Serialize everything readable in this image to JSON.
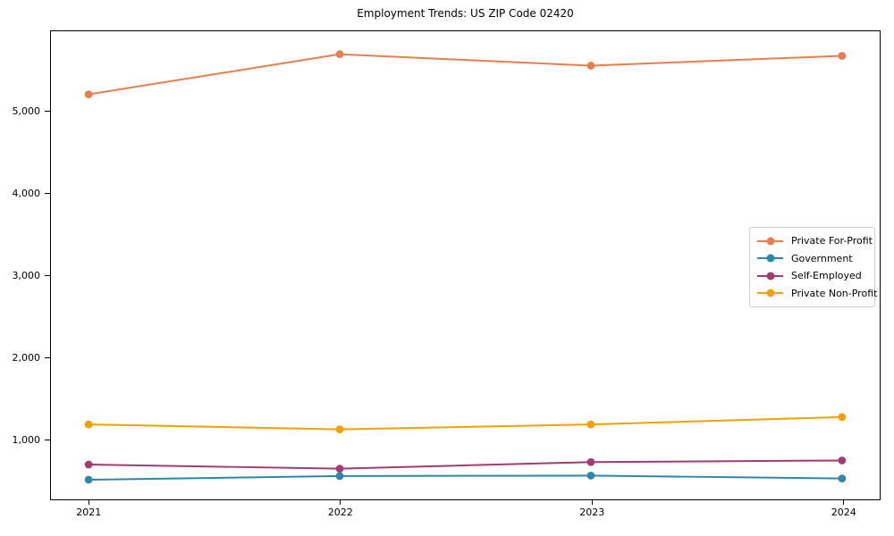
{
  "figure": {
    "background": "#ffffff",
    "frame_color": "#000000",
    "legend_border_color": "#cccccc"
  },
  "chart_data": {
    "type": "line",
    "title": "Employment Trends: US ZIP Code 02420",
    "xlabel": "",
    "ylabel": "",
    "x": [
      2021,
      2022,
      2023,
      2024
    ],
    "x_tick_labels": [
      "2021",
      "2022",
      "2023",
      "2024"
    ],
    "series": [
      {
        "name": "Private For-Profit",
        "color": "#E87D4E",
        "values": [
          5200,
          5690,
          5550,
          5670
        ]
      },
      {
        "name": "Government",
        "color": "#2E86AB",
        "values": [
          495,
          540,
          545,
          510
        ]
      },
      {
        "name": "Self-Employed",
        "color": "#A23B72",
        "values": [
          680,
          630,
          710,
          730
        ]
      },
      {
        "name": "Private Non-Profit",
        "color": "#F1A104",
        "values": [
          1170,
          1110,
          1170,
          1260
        ]
      }
    ],
    "xlim": [
      2020.85,
      2024.15
    ],
    "ylim": [
      255,
      5970
    ],
    "y_ticks": [
      1000,
      2000,
      3000,
      4000,
      5000
    ],
    "y_tick_labels": [
      "1,000",
      "2,000",
      "3,000",
      "4,000",
      "5,000"
    ],
    "grid": false,
    "legend_position": "center right",
    "marker": "circle",
    "marker_radius": 4.4,
    "line_width": 2
  }
}
